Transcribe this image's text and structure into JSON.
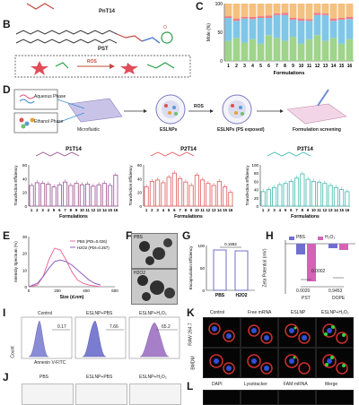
{
  "panels": {
    "A": "A",
    "B": "B",
    "C": "C",
    "D": "D",
    "E": "E",
    "F": "F",
    "G": "G",
    "H": "H",
    "I": "I",
    "J": "J",
    "K": "K",
    "L": "L"
  },
  "panel_a": {
    "compound": "PnT14"
  },
  "panel_b": {
    "compound": "PST",
    "reaction": "ROS"
  },
  "panel_c": {
    "chart_data": {
      "type": "bar",
      "stacked": true,
      "categories": [
        "1",
        "2",
        "3",
        "4",
        "5",
        "6",
        "7",
        "8",
        "9",
        "10",
        "11",
        "12",
        "13",
        "14",
        "15",
        "16"
      ],
      "xlabel": "Formulations",
      "ylabel": "Mole (%)",
      "ylim": [
        0,
        100
      ],
      "yticks": [
        "0",
        "50",
        "100"
      ],
      "colors": [
        "#9fd48b",
        "#7fc7e8",
        "#f27a82",
        "#f6c07e"
      ],
      "series": [
        {
          "values": [
            35,
            40,
            32,
            38,
            30,
            45,
            40,
            35,
            42,
            30,
            38,
            45,
            35,
            40,
            30,
            38
          ]
        },
        {
          "values": [
            40,
            30,
            42,
            35,
            45,
            30,
            40,
            45,
            30,
            40,
            32,
            35,
            45,
            30,
            42,
            35
          ]
        },
        {
          "values": [
            3,
            4,
            3,
            4,
            3,
            4,
            3,
            4,
            3,
            4,
            3,
            4,
            3,
            4,
            3,
            4
          ]
        },
        {
          "values": [
            22,
            26,
            23,
            23,
            22,
            21,
            17,
            16,
            25,
            26,
            27,
            16,
            17,
            26,
            25,
            23
          ]
        }
      ]
    }
  },
  "panel_d": {
    "aqueous": "Aqueous Phase",
    "ethanol": "Ethanol Phase",
    "microfluidic": "Microfluidic",
    "eslnps": "ESLNPs",
    "ros": "ROS",
    "eslnps_exposed": "ESLNPs (PS exposed)",
    "screening": "Formulation screening",
    "charts": [
      {
        "chart_data": {
          "type": "bar",
          "title": "P1T14",
          "categories": [
            "1",
            "2",
            "3",
            "4",
            "5",
            "6",
            "7",
            "8",
            "9",
            "10",
            "11",
            "12",
            "13",
            "14",
            "15",
            "16"
          ],
          "values": [
            30,
            34,
            33,
            32,
            28,
            31,
            35,
            30,
            33,
            31,
            32,
            29,
            31,
            33,
            30,
            45
          ],
          "xlabel": "Formulations",
          "ylabel": "Transfection Efficiency",
          "ylim": [
            0,
            60
          ],
          "yticks": [
            "0",
            "20",
            "40",
            "60"
          ],
          "color": "#9a4f8f"
        }
      },
      {
        "chart_data": {
          "type": "bar",
          "title": "P2T14",
          "categories": [
            "1",
            "2",
            "3",
            "4",
            "5",
            "6",
            "7",
            "8",
            "9",
            "10",
            "11",
            "12",
            "13",
            "14",
            "15",
            "16"
          ],
          "values": [
            28,
            36,
            38,
            34,
            42,
            48,
            40,
            35,
            30,
            45,
            38,
            33,
            30,
            36,
            28,
            20
          ],
          "xlabel": "Formulations",
          "ylabel": "Transfection Efficiency",
          "ylim": [
            0,
            60
          ],
          "yticks": [
            "0",
            "20",
            "40",
            "60"
          ],
          "color": "#e25a5a"
        }
      },
      {
        "chart_data": {
          "type": "bar",
          "title": "P3T14",
          "categories": [
            "1",
            "2",
            "3",
            "4",
            "5",
            "6",
            "7",
            "8",
            "9",
            "10",
            "11",
            "12",
            "13",
            "14",
            "15",
            "16"
          ],
          "values": [
            35,
            40,
            45,
            52,
            55,
            60,
            68,
            78,
            65,
            60,
            58,
            55,
            50,
            45,
            40,
            35
          ],
          "xlabel": "Formulations",
          "ylabel": "Transfection Efficiency",
          "ylim": [
            0,
            100
          ],
          "yticks": [
            "0",
            "20",
            "40",
            "60",
            "80",
            "100"
          ],
          "color": "#3fb8b0"
        }
      }
    ]
  },
  "panel_e": {
    "chart_data": {
      "type": "line",
      "xlabel": "Size (d.nm)",
      "ylabel": "Intensity Spectrum (%)",
      "xlim": [
        0,
        600
      ],
      "ylim": [
        0,
        30
      ],
      "xticks": [
        "0",
        "200",
        "400",
        "600"
      ],
      "yticks": [
        "0",
        "10",
        "20",
        "30"
      ],
      "series": [
        {
          "name": "PBS (PDI=0.026)",
          "color": "#e86b9a",
          "x": [
            0,
            60,
            100,
            140,
            180,
            220,
            260,
            300,
            340,
            380,
            420,
            460,
            500
          ],
          "y": [
            0,
            1,
            6,
            16,
            23,
            22,
            16,
            9,
            4,
            2,
            1,
            0.5,
            0
          ]
        },
        {
          "name": "H2O2 (PDI=0.257)",
          "color": "#8e5fc0",
          "x": [
            0,
            60,
            100,
            140,
            180,
            220,
            260,
            300,
            340,
            380,
            420,
            460,
            500
          ],
          "y": [
            0,
            2,
            6,
            11,
            15,
            16,
            15,
            13,
            10,
            7,
            4,
            2,
            1
          ]
        }
      ]
    }
  },
  "panel_f": {
    "top_label": "PBS",
    "bottom_label": "H2O2"
  },
  "panel_g": {
    "chart_data": {
      "type": "bar",
      "categories": [
        "PBS",
        "H2O2"
      ],
      "values": [
        90,
        88
      ],
      "ylabel": "Encapsulation Efficiency",
      "ylim": [
        0,
        100
      ],
      "yticks": [
        "0",
        "50",
        "100"
      ],
      "annotation": "0.1592",
      "color": "#6f6fcf"
    }
  },
  "panel_h": {
    "chart_data": {
      "type": "bar",
      "categories": [
        "PST",
        "DOPE"
      ],
      "series": [
        {
          "name": "PBS",
          "values": [
            -5,
            -2
          ],
          "color": "#6f6fcf"
        },
        {
          "name": "H2O2",
          "values": [
            -18,
            -3
          ],
          "color": "#d463b5"
        }
      ],
      "ylabel": "Zeta Potential (mV)",
      "ylim": [
        -25,
        5
      ],
      "annotations": [
        "0.0002",
        "0.0020",
        "0.9453"
      ]
    },
    "legend_pbs": "PBS",
    "legend_h2o2": "H₂O₂",
    "ann1": "0.0002",
    "ann2": "0.0020",
    "ann3": "0.9453"
  },
  "panel_i": {
    "titles": [
      "Control",
      "ESLNP+PBS",
      "ESLNP+H₂O₂"
    ],
    "values": [
      "0.17",
      "7.66",
      "65.2"
    ],
    "xlabel": "Annexin V-FITC",
    "ylabel": "Count"
  },
  "panel_j": {
    "titles": [
      "PBS",
      "ESLNP+PBS",
      "ESLNP+H₂O₂"
    ]
  },
  "panel_k": {
    "titles": [
      "Control",
      "Free mRNA",
      "ESLNP",
      "ESLNP+H₂O₂"
    ],
    "row1": "RAW 264.7",
    "row2": "BMDM"
  },
  "panel_l": {
    "titles": [
      "DAPI",
      "Lysotracker",
      "FAM-mRNA",
      "Merge"
    ]
  }
}
